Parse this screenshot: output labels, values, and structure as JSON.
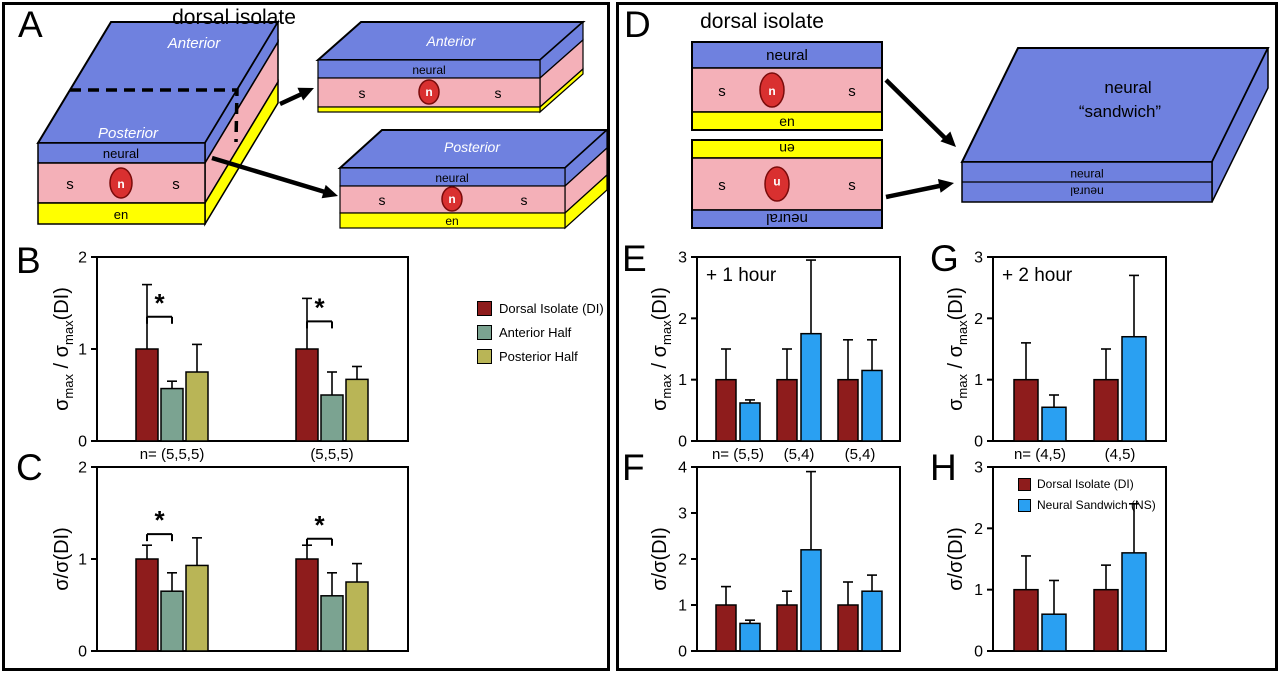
{
  "panels": {
    "A": {
      "letter": "A",
      "title": "dorsal isolate"
    },
    "B": {
      "letter": "B"
    },
    "C": {
      "letter": "C"
    },
    "D": {
      "letter": "D",
      "title": "dorsal isolate"
    },
    "E": {
      "letter": "E"
    },
    "F": {
      "letter": "F"
    },
    "G": {
      "letter": "G"
    },
    "H": {
      "letter": "H"
    }
  },
  "labels": {
    "sigma_max_parts": [
      "σ",
      "max",
      " / σ",
      "max",
      "(DI)"
    ],
    "sigma_plain": "σ/σ(DI)"
  },
  "colors": {
    "DI": "#8e1c1c",
    "ANT": "#7ba391",
    "POST": "#b9b556",
    "NS": "#2aa0f2",
    "blue_layer": "#6f81df",
    "pink_layer": "#f4b0b8",
    "yellow_layer": "#ffff00",
    "red_cell": "#d93030"
  },
  "legends": {
    "bc": [
      {
        "series": "DI",
        "label": "Dorsal Isolate (DI)"
      },
      {
        "series": "ANT",
        "label": "Anterior Half"
      },
      {
        "series": "POST",
        "label": "Posterior Half"
      }
    ],
    "h": [
      {
        "series": "DI",
        "label": "Dorsal Isolate (DI)"
      },
      {
        "series": "NS",
        "label": "Neural Sandwich (NS)"
      }
    ]
  },
  "diagram_a": {
    "main_slab": {
      "anterior": "Anterior",
      "posterior": "Posterior",
      "neural": "neural",
      "s_left": "s",
      "n": "n",
      "s_right": "s",
      "en": "en"
    },
    "anterior_slab": {
      "top": "Anterior",
      "neural": "neural",
      "s_left": "s",
      "n": "n",
      "s_right": "s"
    },
    "posterior_slab": {
      "top": "Posterior",
      "neural": "neural",
      "s_left": "s",
      "n": "n",
      "s_right": "s",
      "en": "en"
    }
  },
  "diagram_d": {
    "upright_slab": {
      "neural": "neural",
      "s_left": "s",
      "n": "n",
      "s_right": "s",
      "en": "en"
    },
    "flipped_slab": {
      "neural": "neural",
      "s_left": "s",
      "n": "n",
      "s_right": "s",
      "en": "en"
    },
    "sandwich": {
      "title_line1": "neural",
      "title_line2": "“sandwich”",
      "front_top": "neural",
      "front_bottom": "neural"
    }
  },
  "chart_data": [
    {
      "id": "B",
      "type": "bar",
      "ylabel": "σmax / σmax(DI)",
      "ylim": [
        0,
        2
      ],
      "yticks": [
        0,
        1,
        2
      ],
      "legend": [
        "Dorsal Isolate (DI)",
        "Anterior Half",
        "Posterior Half"
      ],
      "groups": [
        {
          "xlabel": "n= (5,5,5)",
          "sig": {
            "between": [
              0,
              1
            ],
            "symbol": "*",
            "y": 1.35
          },
          "bars": [
            {
              "series": "DI",
              "value": 1.0,
              "err": 0.7
            },
            {
              "series": "ANT",
              "value": 0.57,
              "err": 0.08
            },
            {
              "series": "POST",
              "value": 0.75,
              "err": 0.3
            }
          ]
        },
        {
          "xlabel": "(5,5,5)",
          "sig": {
            "between": [
              0,
              1
            ],
            "symbol": "*",
            "y": 1.3
          },
          "bars": [
            {
              "series": "DI",
              "value": 1.0,
              "err": 0.55
            },
            {
              "series": "ANT",
              "value": 0.5,
              "err": 0.25
            },
            {
              "series": "POST",
              "value": 0.67,
              "err": 0.14
            }
          ]
        }
      ]
    },
    {
      "id": "C",
      "type": "bar",
      "ylabel": "σ/σ(DI)",
      "ylim": [
        0,
        2
      ],
      "yticks": [
        0,
        1,
        2
      ],
      "groups": [
        {
          "sig": {
            "between": [
              0,
              1
            ],
            "symbol": "*",
            "y": 1.27
          },
          "bars": [
            {
              "series": "DI",
              "value": 1.0,
              "err": 0.15
            },
            {
              "series": "ANT",
              "value": 0.65,
              "err": 0.2
            },
            {
              "series": "POST",
              "value": 0.93,
              "err": 0.3
            }
          ]
        },
        {
          "sig": {
            "between": [
              0,
              1
            ],
            "symbol": "*",
            "y": 1.22
          },
          "bars": [
            {
              "series": "DI",
              "value": 1.0,
              "err": 0.15
            },
            {
              "series": "ANT",
              "value": 0.6,
              "err": 0.25
            },
            {
              "series": "POST",
              "value": 0.75,
              "err": 0.2
            }
          ]
        }
      ]
    },
    {
      "id": "E",
      "type": "bar",
      "ylabel": "σmax / σmax(DI)",
      "annotation": "+ 1 hour",
      "ylim": [
        0,
        3
      ],
      "yticks": [
        0,
        1,
        2,
        3
      ],
      "groups": [
        {
          "xlabel": "n= (5,5)",
          "bars": [
            {
              "series": "DI",
              "value": 1.0,
              "err": 0.5
            },
            {
              "series": "NS",
              "value": 0.62,
              "err": 0.05
            }
          ]
        },
        {
          "xlabel": "(5,4)",
          "bars": [
            {
              "series": "DI",
              "value": 1.0,
              "err": 0.5
            },
            {
              "series": "NS",
              "value": 1.75,
              "err": 1.2
            }
          ]
        },
        {
          "xlabel": "(5,4)",
          "bars": [
            {
              "series": "DI",
              "value": 1.0,
              "err": 0.65
            },
            {
              "series": "NS",
              "value": 1.15,
              "err": 0.5
            }
          ]
        }
      ]
    },
    {
      "id": "F",
      "type": "bar",
      "ylabel": "σ/σ(DI)",
      "ylim": [
        0,
        4
      ],
      "yticks": [
        0,
        1,
        2,
        3,
        4
      ],
      "groups": [
        {
          "bars": [
            {
              "series": "DI",
              "value": 1.0,
              "err": 0.4
            },
            {
              "series": "NS",
              "value": 0.6,
              "err": 0.07
            }
          ]
        },
        {
          "bars": [
            {
              "series": "DI",
              "value": 1.0,
              "err": 0.3
            },
            {
              "series": "NS",
              "value": 2.2,
              "err": 1.7
            }
          ]
        },
        {
          "bars": [
            {
              "series": "DI",
              "value": 1.0,
              "err": 0.5
            },
            {
              "series": "NS",
              "value": 1.3,
              "err": 0.35
            }
          ]
        }
      ]
    },
    {
      "id": "G",
      "type": "bar",
      "ylabel": "σmax / σmax(DI)",
      "annotation": "+ 2 hour",
      "ylim": [
        0,
        3
      ],
      "yticks": [
        0,
        1,
        2,
        3
      ],
      "groups": [
        {
          "xlabel": "n= (4,5)",
          "bars": [
            {
              "series": "DI",
              "value": 1.0,
              "err": 0.6
            },
            {
              "series": "NS",
              "value": 0.55,
              "err": 0.2
            }
          ]
        },
        {
          "xlabel": "(4,5)",
          "bars": [
            {
              "series": "DI",
              "value": 1.0,
              "err": 0.5
            },
            {
              "series": "NS",
              "value": 1.7,
              "err": 1.0
            }
          ]
        }
      ]
    },
    {
      "id": "H",
      "type": "bar",
      "ylabel": "σ/σ(DI)",
      "ylim": [
        0,
        3
      ],
      "yticks": [
        0,
        1,
        2,
        3
      ],
      "legend": [
        "Dorsal Isolate (DI)",
        "Neural Sandwich (NS)"
      ],
      "groups": [
        {
          "bars": [
            {
              "series": "DI",
              "value": 1.0,
              "err": 0.55
            },
            {
              "series": "NS",
              "value": 0.6,
              "err": 0.55
            }
          ]
        },
        {
          "bars": [
            {
              "series": "DI",
              "value": 1.0,
              "err": 0.4
            },
            {
              "series": "NS",
              "value": 1.6,
              "err": 0.8
            }
          ]
        }
      ]
    }
  ]
}
